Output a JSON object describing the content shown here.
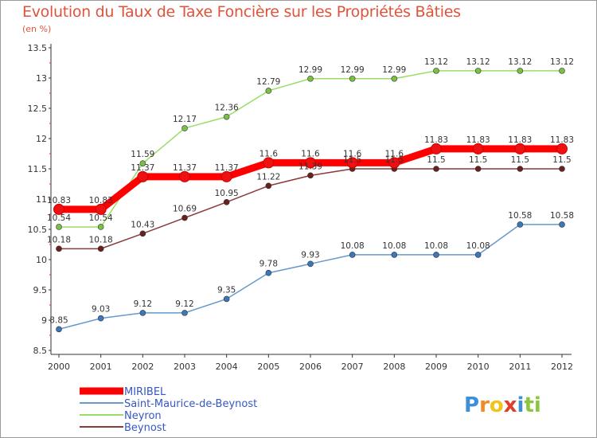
{
  "title": "Evolution du Taux de Taxe Foncière sur les Propriétés Bâties",
  "unit_label": "(en %)",
  "logo_letters": [
    {
      "ch": "P",
      "color": "#3f8fd8"
    },
    {
      "ch": "r",
      "color": "#f08a24"
    },
    {
      "ch": "o",
      "color": "#f0c419"
    },
    {
      "ch": "x",
      "color": "#e23d28"
    },
    {
      "ch": "i",
      "color": "#3f8fd8"
    },
    {
      "ch": "t",
      "color": "#8cc63f"
    },
    {
      "ch": "i",
      "color": "#8cc63f"
    }
  ],
  "chart_data": {
    "type": "line",
    "title": "Evolution du Taux de Taxe Foncière sur les Propriétés Bâties",
    "ylabel": "(en %)",
    "xlabel": "",
    "ylim": [
      8.5,
      13.5
    ],
    "y_ticks": [
      "8.5",
      "9",
      "9.5",
      "10",
      "10.5",
      "11",
      "11.5",
      "12",
      "12.5",
      "13",
      "13.5"
    ],
    "categories": [
      "2000",
      "2001",
      "2002",
      "2003",
      "2004",
      "2005",
      "2006",
      "2007",
      "2008",
      "2009",
      "2010",
      "2011",
      "2012"
    ],
    "grid": false,
    "legend_position": "bottom-left",
    "series": [
      {
        "name": "MIRIBEL",
        "color": "#ff0000",
        "marker": "#ee1111",
        "thick": true,
        "values": [
          10.83,
          10.83,
          11.37,
          11.37,
          11.37,
          11.6,
          11.6,
          11.6,
          11.6,
          11.83,
          11.83,
          11.83,
          11.83
        ],
        "labels": [
          "10.83",
          "10.83",
          "11.37",
          "11.37",
          "11.37",
          "11.6",
          "11.6",
          "11.6",
          "11.6",
          "11.83",
          "11.83",
          "11.83",
          "11.83"
        ]
      },
      {
        "name": "Saint-Maurice-de-Beynost",
        "color": "#6699cc",
        "marker": "#3a77bb",
        "thick": false,
        "values": [
          8.85,
          9.03,
          9.12,
          9.12,
          9.35,
          9.78,
          9.93,
          10.08,
          10.08,
          10.08,
          10.08,
          10.58,
          10.58
        ],
        "labels": [
          "8.85",
          "9.03",
          "9.12",
          "9.12",
          "9.35",
          "9.78",
          "9.93",
          "10.08",
          "10.08",
          "10.08",
          "10.08",
          "10.58",
          "10.58"
        ]
      },
      {
        "name": "Neyron",
        "color": "#99dd66",
        "marker": "#7ac143",
        "thick": false,
        "values": [
          10.54,
          10.54,
          11.59,
          12.17,
          12.36,
          12.79,
          12.99,
          12.99,
          12.99,
          13.12,
          13.12,
          13.12,
          13.12
        ],
        "labels": [
          "10.54",
          "10.54",
          "11.59",
          "12.17",
          "12.36",
          "12.79",
          "12.99",
          "12.99",
          "12.99",
          "13.12",
          "13.12",
          "13.12",
          "13.12"
        ]
      },
      {
        "name": "Beynost",
        "color": "#8b3a3a",
        "marker": "#6b2020",
        "thick": false,
        "values": [
          10.18,
          10.18,
          10.43,
          10.69,
          10.95,
          11.22,
          11.39,
          11.5,
          11.5,
          11.5,
          11.5,
          11.5,
          11.5
        ],
        "labels": [
          "10.18",
          "10.18",
          "10.43",
          "10.69",
          "10.95",
          "11.22",
          "11.39",
          "11.5",
          "11.5",
          "11.5",
          "11.5",
          "11.5",
          "11.5"
        ]
      }
    ]
  }
}
